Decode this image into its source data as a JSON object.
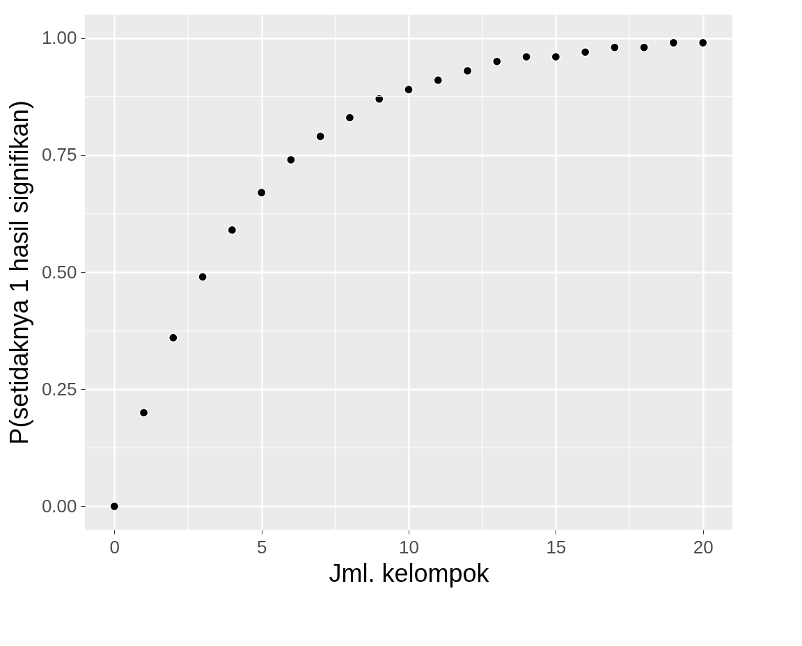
{
  "chart_data": {
    "type": "scatter",
    "xlabel": "Jml. kelompok",
    "ylabel": "P(setidaknya 1 hasil signifikan)",
    "x": [
      0,
      1,
      2,
      3,
      4,
      5,
      6,
      7,
      8,
      9,
      10,
      11,
      12,
      13,
      14,
      15,
      16,
      17,
      18,
      19,
      20
    ],
    "series": [
      {
        "color": "#000000",
        "values": [
          0,
          0.2,
          0.36,
          0.49,
          0.59,
          0.67,
          0.74,
          0.79,
          0.83,
          0.87,
          0.89,
          0.91,
          0.93,
          0.95,
          0.96,
          0.96,
          0.97,
          0.98,
          0.98,
          0.99,
          0.99
        ]
      }
    ],
    "xlim": [
      -1,
      21
    ],
    "ylim": [
      -0.05,
      1.05
    ],
    "xticks": [
      0,
      5,
      10,
      15,
      20
    ],
    "yticks": [
      {
        "value": 0,
        "label": "0.00"
      },
      {
        "value": 0.25,
        "label": "0.25"
      },
      {
        "value": 0.5,
        "label": "0.50"
      },
      {
        "value": 0.75,
        "label": "0.75"
      },
      {
        "value": 1,
        "label": "1.00"
      }
    ],
    "grid": true,
    "marker": "circle"
  }
}
